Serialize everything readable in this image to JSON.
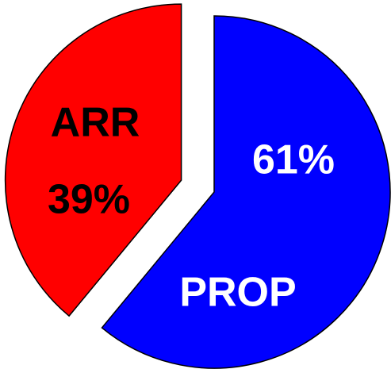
{
  "chart_data": {
    "type": "pie",
    "categories": [
      "PROP",
      "ARR"
    ],
    "values": [
      61,
      39
    ],
    "value_labels": [
      "61%",
      "39%"
    ],
    "colors": [
      "#0000ff",
      "#ff0000"
    ],
    "label_colors": [
      "#ffffff",
      "#000000"
    ],
    "exploded": 1
  }
}
